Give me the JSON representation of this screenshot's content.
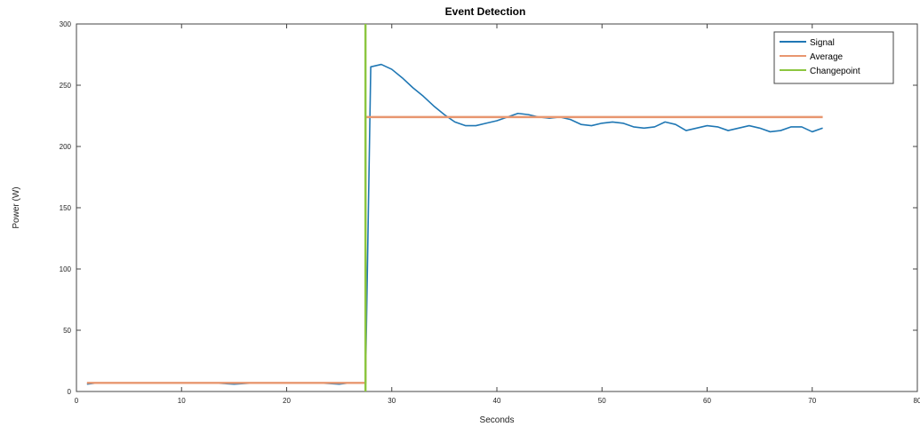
{
  "chart_data": {
    "type": "line",
    "title": "Event Detection",
    "xlabel": "Seconds",
    "ylabel": "Power (W)",
    "xlim": [
      0,
      80
    ],
    "ylim": [
      0,
      300
    ],
    "xticks": [
      0,
      10,
      20,
      30,
      40,
      50,
      60,
      70,
      80
    ],
    "yticks": [
      0,
      50,
      100,
      150,
      200,
      250,
      300
    ],
    "xtick_labels": [
      "0",
      "10",
      "20",
      "30",
      "40",
      "50",
      "60",
      "70",
      "80"
    ],
    "ytick_labels": [
      "0",
      "50",
      "100",
      "150",
      "200",
      "250",
      "300"
    ],
    "grid": false,
    "legend_position": "top-right",
    "series": [
      {
        "name": "Signal",
        "color": "#1f77b4",
        "x": [
          1,
          2,
          3,
          5,
          7,
          9,
          11,
          13,
          15,
          17,
          19,
          21,
          23,
          25,
          26,
          27,
          27.5,
          28,
          29,
          30,
          31,
          32,
          33,
          34,
          35,
          36,
          37,
          38,
          39,
          40,
          41,
          42,
          43,
          44,
          45,
          46,
          47,
          48,
          49,
          50,
          51,
          52,
          53,
          54,
          55,
          56,
          57,
          58,
          59,
          60,
          61,
          62,
          63,
          64,
          65,
          66,
          67,
          68,
          69,
          70,
          71
        ],
        "y": [
          6,
          7,
          7,
          7,
          7,
          7,
          7,
          7,
          6,
          7,
          7,
          7,
          7,
          6,
          7,
          7,
          7,
          265,
          267,
          263,
          256,
          248,
          241,
          233,
          226,
          220,
          217,
          217,
          219,
          221,
          224,
          227,
          226,
          224,
          223,
          224,
          222,
          218,
          217,
          219,
          220,
          219,
          216,
          215,
          216,
          220,
          218,
          213,
          215,
          217,
          216,
          213,
          215,
          217,
          215,
          212,
          213,
          216,
          216,
          212,
          215
        ]
      },
      {
        "name": "Average",
        "color": "#e8966f",
        "x": [
          1,
          27.5,
          27.5,
          71
        ],
        "y": [
          7,
          7,
          224,
          224
        ]
      },
      {
        "name": "Changepoint",
        "color": "#8cc63f",
        "x": [
          27.5,
          27.5
        ],
        "y": [
          0,
          300
        ]
      }
    ]
  }
}
